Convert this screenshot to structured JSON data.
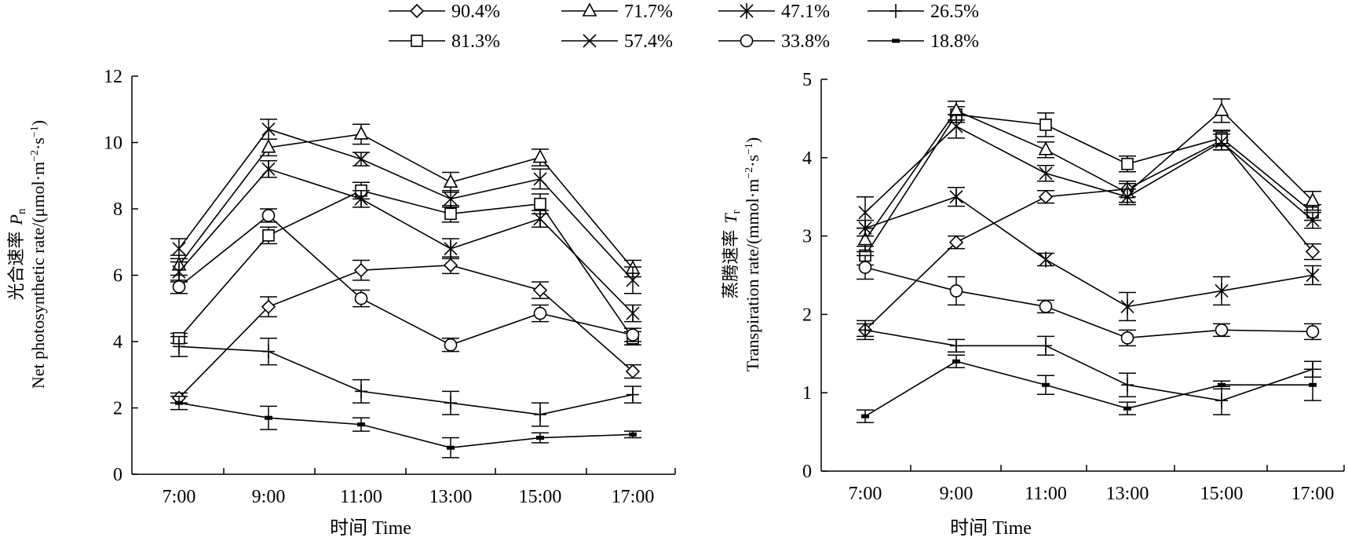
{
  "legend": {
    "rows": [
      [
        "90.4%",
        "71.7%",
        "47.1%",
        "26.5%"
      ],
      [
        "81.3%",
        "57.4%",
        "33.8%",
        "18.8%"
      ]
    ]
  },
  "chart_data": [
    {
      "type": "line",
      "ylabel_cn": "光合速率",
      "ylabel_symbol": "P",
      "ylabel_symbol_sub": "n",
      "ylabel_en": "Net photosynthetic rate/(μmol·m",
      "ylabel_unit_sup1": "−2",
      "ylabel_unit_mid": "·s",
      "ylabel_unit_sup2": "−1",
      "ylabel_unit_end": ")",
      "xlabel": "时间 Time",
      "categories": [
        "7:00",
        "9:00",
        "11:00",
        "13:00",
        "15:00",
        "17:00"
      ],
      "ylim": [
        0,
        12
      ],
      "yticks": [
        "0",
        "2",
        "4",
        "6",
        "8",
        "10",
        "12"
      ],
      "series": [
        {
          "name": "90.4%",
          "marker": "diamond",
          "values": [
            2.3,
            5.05,
            6.15,
            6.3,
            5.55,
            3.1
          ],
          "err": [
            0.15,
            0.3,
            0.3,
            0.25,
            0.25,
            0.2
          ]
        },
        {
          "name": "81.3%",
          "marker": "square",
          "values": [
            4.1,
            7.2,
            8.55,
            7.85,
            8.15,
            4.1
          ],
          "err": [
            0.15,
            0.25,
            0.25,
            0.25,
            0.3,
            0.2
          ]
        },
        {
          "name": "71.7%",
          "marker": "triangle",
          "values": [
            6.3,
            9.85,
            10.25,
            8.8,
            9.55,
            6.2
          ],
          "err": [
            0.3,
            0.25,
            0.3,
            0.3,
            0.25,
            0.25
          ]
        },
        {
          "name": "57.4%",
          "marker": "x",
          "values": [
            6.8,
            10.4,
            9.5,
            8.3,
            8.9,
            5.85
          ],
          "err": [
            0.3,
            0.3,
            0.2,
            0.25,
            0.3,
            0.4
          ]
        },
        {
          "name": "47.1%",
          "marker": "star",
          "values": [
            6.1,
            9.2,
            8.3,
            6.8,
            7.7,
            4.85
          ],
          "err": [
            0.3,
            0.25,
            0.25,
            0.3,
            0.25,
            0.25
          ]
        },
        {
          "name": "33.8%",
          "marker": "circle",
          "values": [
            5.65,
            7.8,
            5.3,
            3.9,
            4.85,
            4.2
          ],
          "err": [
            0.2,
            0.2,
            0.25,
            0.2,
            0.25,
            0.2
          ]
        },
        {
          "name": "26.5%",
          "marker": "plus",
          "values": [
            3.85,
            3.7,
            2.5,
            2.15,
            1.8,
            2.4
          ],
          "err": [
            0.3,
            0.4,
            0.35,
            0.35,
            0.35,
            0.25
          ]
        },
        {
          "name": "18.8%",
          "marker": "dash",
          "values": [
            2.15,
            1.7,
            1.5,
            0.8,
            1.1,
            1.2
          ],
          "err": [
            0.2,
            0.35,
            0.2,
            0.3,
            0.15,
            0.1
          ]
        }
      ]
    },
    {
      "type": "line",
      "ylabel_cn": "蒸腾速率",
      "ylabel_symbol": "T",
      "ylabel_symbol_sub": "r",
      "ylabel_en": "Transpiration rate/(mmol·m",
      "ylabel_unit_sup1": "−2",
      "ylabel_unit_mid": "·s",
      "ylabel_unit_sup2": "−1",
      "ylabel_unit_end": ")",
      "xlabel": "时间 Time",
      "categories": [
        "7:00",
        "9:00",
        "11:00",
        "13:00",
        "15:00",
        "17:00"
      ],
      "ylim": [
        0,
        5
      ],
      "yticks": [
        "0",
        "1",
        "2",
        "3",
        "4",
        "5"
      ],
      "series": [
        {
          "name": "90.4%",
          "marker": "diamond",
          "values": [
            1.8,
            2.92,
            3.5,
            3.6,
            4.22,
            2.8
          ],
          "err": [
            0.08,
            0.08,
            0.08,
            0.1,
            0.12,
            0.1
          ]
        },
        {
          "name": "81.3%",
          "marker": "square",
          "values": [
            2.75,
            4.55,
            4.42,
            3.92,
            4.25,
            3.3
          ],
          "err": [
            0.12,
            0.1,
            0.15,
            0.1,
            0.1,
            0.1
          ]
        },
        {
          "name": "71.7%",
          "marker": "triangle",
          "values": [
            2.95,
            4.6,
            4.1,
            3.55,
            4.6,
            3.45
          ],
          "err": [
            0.15,
            0.12,
            0.1,
            0.12,
            0.15,
            0.12
          ]
        },
        {
          "name": "57.4%",
          "marker": "x",
          "values": [
            3.3,
            4.4,
            3.8,
            3.5,
            4.2,
            3.2
          ],
          "err": [
            0.2,
            0.15,
            0.1,
            0.1,
            0.1,
            0.1
          ]
        },
        {
          "name": "47.1%",
          "marker": "star",
          "values": [
            3.1,
            3.5,
            2.7,
            2.1,
            2.3,
            2.5
          ],
          "err": [
            0.1,
            0.12,
            0.08,
            0.18,
            0.18,
            0.12
          ]
        },
        {
          "name": "33.8%",
          "marker": "circle",
          "values": [
            2.6,
            2.3,
            2.1,
            1.7,
            1.8,
            1.78
          ],
          "err": [
            0.15,
            0.18,
            0.08,
            0.1,
            0.08,
            0.1
          ]
        },
        {
          "name": "26.5%",
          "marker": "plus",
          "values": [
            1.8,
            1.6,
            1.6,
            1.1,
            0.9,
            1.3
          ],
          "err": [
            0.12,
            0.08,
            0.12,
            0.15,
            0.18,
            0.1
          ]
        },
        {
          "name": "18.8%",
          "marker": "dash",
          "values": [
            0.7,
            1.4,
            1.1,
            0.8,
            1.1,
            1.1
          ],
          "err": [
            0.08,
            0.08,
            0.12,
            0.08,
            0.05,
            0.2
          ]
        }
      ]
    }
  ]
}
